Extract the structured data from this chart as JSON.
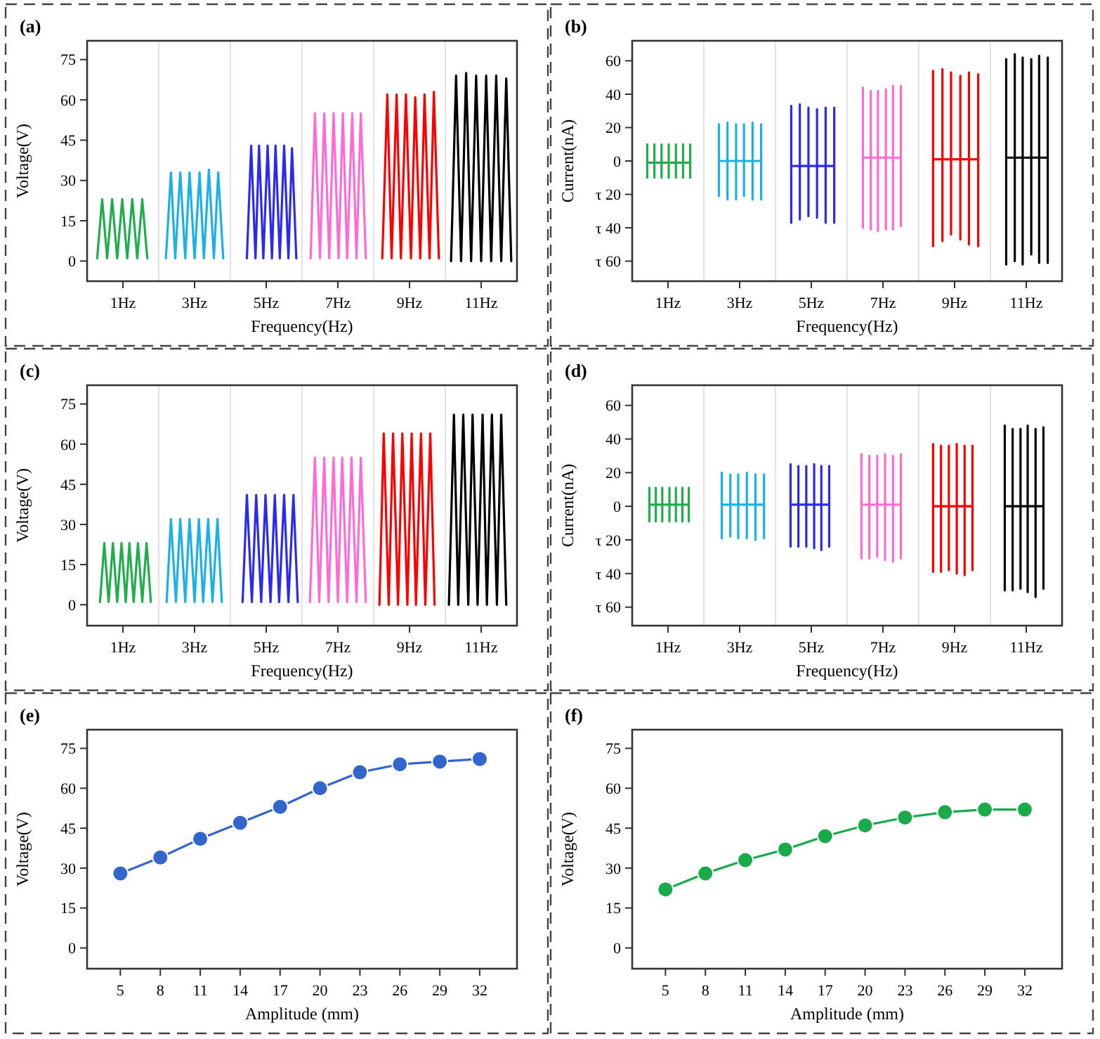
{
  "chart_data": [
    {
      "type": "line",
      "title": "(a)",
      "xlabel": "Frequency(Hz)",
      "ylabel": "Voltage(V)",
      "xlim": [
        0,
        12
      ],
      "ylim": [
        -7.5,
        82
      ],
      "xticks": [
        {
          "value": 1,
          "label": "1Hz"
        },
        {
          "value": 3,
          "label": "3Hz"
        },
        {
          "value": 5,
          "label": "5Hz"
        },
        {
          "value": 7,
          "label": "7Hz"
        },
        {
          "value": 9,
          "label": "9Hz"
        },
        {
          "value": 11,
          "label": "11Hz"
        }
      ],
      "yticks": [
        0,
        15,
        30,
        45,
        60,
        75
      ],
      "ref_lines": [
        {
          "axis": "x",
          "value": 2,
          "color": "#e3e3e3"
        },
        {
          "axis": "x",
          "value": 4,
          "color": "#e3e3e3"
        },
        {
          "axis": "x",
          "value": 6,
          "color": "#e3e3e3"
        },
        {
          "axis": "x",
          "value": 8,
          "color": "#e3e3e3"
        },
        {
          "axis": "x",
          "value": 10,
          "color": "#e3e3e3"
        }
      ],
      "series": [
        {
          "color": "#1fae4b",
          "x": [
            0.28,
            0.42,
            0.56,
            0.7,
            0.84,
            0.98,
            1.12,
            1.26,
            1.4,
            1.54,
            1.68
          ],
          "values": [
            1,
            23,
            1,
            23,
            1,
            23,
            1,
            23,
            1,
            23,
            1
          ]
        },
        {
          "color": "#1ab0e8",
          "x": [
            2.2,
            2.34,
            2.46,
            2.6,
            2.74,
            2.86,
            3,
            3.14,
            3.26,
            3.4,
            3.54,
            3.66,
            3.8
          ],
          "values": [
            1,
            33,
            1,
            33,
            1,
            33,
            1,
            33,
            1,
            34,
            1,
            33,
            1
          ]
        },
        {
          "color": "#2a2af0",
          "x": [
            4.46,
            4.58,
            4.7,
            4.8,
            4.92,
            5.04,
            5.16,
            5.26,
            5.38,
            5.5,
            5.62,
            5.72,
            5.84
          ],
          "values": [
            1,
            43,
            1,
            43,
            1,
            43,
            1,
            43,
            1,
            43,
            1,
            42,
            1
          ]
        },
        {
          "color": "#ff6ad5",
          "x": [
            6.24,
            6.36,
            6.5,
            6.62,
            6.76,
            6.88,
            7.02,
            7.14,
            7.26,
            7.4,
            7.52,
            7.64,
            7.78
          ],
          "values": [
            1,
            55,
            1,
            55,
            1,
            55,
            1,
            55,
            1,
            55,
            1,
            55,
            1
          ]
        },
        {
          "color": "#ff0000",
          "x": [
            8.24,
            8.38,
            8.5,
            8.64,
            8.76,
            8.9,
            9.04,
            9.16,
            9.3,
            9.42,
            9.56,
            9.68,
            9.82
          ],
          "values": [
            1,
            62,
            1,
            62,
            1,
            62,
            1,
            61,
            1,
            62,
            1,
            63,
            1
          ]
        },
        {
          "color": "#000000",
          "x": [
            10.16,
            10.3,
            10.44,
            10.58,
            10.72,
            10.86,
            11,
            11.14,
            11.28,
            11.42,
            11.56,
            11.7,
            11.84
          ],
          "values": [
            0,
            69,
            0,
            70,
            0,
            69,
            0,
            69,
            0,
            69,
            0,
            68,
            0
          ]
        }
      ]
    },
    {
      "type": "line",
      "title": "(b)",
      "xlabel": "Frequency(Hz)",
      "ylabel": "Current(nA)",
      "xlim": [
        0,
        12
      ],
      "ylim": [
        -72,
        72
      ],
      "xticks": [
        {
          "value": 1,
          "label": "1Hz"
        },
        {
          "value": 3,
          "label": "3Hz"
        },
        {
          "value": 5,
          "label": "5Hz"
        },
        {
          "value": 7,
          "label": "7Hz"
        },
        {
          "value": 9,
          "label": "9Hz"
        },
        {
          "value": 11,
          "label": "11Hz"
        }
      ],
      "yticks": [
        {
          "value": 60,
          "label": "60"
        },
        {
          "value": 40,
          "label": "40"
        },
        {
          "value": 20,
          "label": "20"
        },
        {
          "value": 0,
          "label": "0"
        },
        {
          "value": -20,
          "label": "τ 20"
        },
        {
          "value": -40,
          "label": "τ 40"
        },
        {
          "value": -60,
          "label": "τ 60"
        }
      ],
      "ref_lines": [
        {
          "axis": "x",
          "value": 2,
          "color": "#e3e3e3"
        },
        {
          "axis": "x",
          "value": 4,
          "color": "#e3e3e3"
        },
        {
          "axis": "x",
          "value": 6,
          "color": "#e3e3e3"
        },
        {
          "axis": "x",
          "value": 8,
          "color": "#e3e3e3"
        },
        {
          "axis": "x",
          "value": 10,
          "color": "#e3e3e3"
        }
      ],
      "series": [
        {
          "color": "#1fae4b",
          "x": [
            0.42,
            0.42,
            0.42,
            0.42,
            0.62,
            0.62,
            0.62,
            0.62,
            0.82,
            0.82,
            0.82,
            0.82,
            1.02,
            1.02,
            1.02,
            1.02,
            1.22,
            1.22,
            1.22,
            1.22,
            1.42,
            1.42,
            1.42,
            1.42,
            1.62,
            1.62,
            1.62,
            1.62
          ],
          "values": [
            -1,
            10,
            -10,
            -1,
            -1,
            10,
            -10,
            -1,
            -1,
            10,
            -10,
            -1,
            -1,
            10,
            -10,
            -1,
            -1,
            10,
            -10,
            -1,
            -1,
            10,
            -10,
            -1,
            -1,
            10,
            -10,
            -1
          ]
        },
        {
          "color": "#1ab0e8",
          "x": [
            2.42,
            2.42,
            2.42,
            2.42,
            2.66,
            2.66,
            2.66,
            2.66,
            2.9,
            2.9,
            2.9,
            2.9,
            3.12,
            3.12,
            3.12,
            3.12,
            3.36,
            3.36,
            3.36,
            3.36,
            3.6,
            3.6,
            3.6,
            3.6
          ],
          "values": [
            0,
            22,
            -21,
            0,
            0,
            23,
            -23,
            0,
            0,
            22,
            -23,
            0,
            0,
            22,
            -21,
            0,
            0,
            23,
            -23,
            0,
            0,
            22,
            -23,
            0
          ]
        },
        {
          "color": "#2a2af0",
          "x": [
            4.44,
            4.44,
            4.44,
            4.44,
            4.68,
            4.68,
            4.68,
            4.68,
            4.92,
            4.92,
            4.92,
            4.92,
            5.16,
            5.16,
            5.16,
            5.16,
            5.4,
            5.4,
            5.4,
            5.4,
            5.64,
            5.64,
            5.64,
            5.64
          ],
          "values": [
            -3,
            33,
            -37,
            -3,
            -3,
            34,
            -35,
            -3,
            -3,
            32,
            -33,
            -3,
            -3,
            31,
            -34,
            -3,
            -3,
            32,
            -37,
            -3,
            -3,
            32,
            -37,
            -3
          ]
        },
        {
          "color": "#ff6ad5",
          "x": [
            6.44,
            6.44,
            6.44,
            6.44,
            6.66,
            6.66,
            6.66,
            6.66,
            6.86,
            6.86,
            6.86,
            6.86,
            7.08,
            7.08,
            7.08,
            7.08,
            7.28,
            7.28,
            7.28,
            7.28,
            7.5,
            7.5,
            7.5,
            7.5
          ],
          "values": [
            2,
            44,
            -40,
            2,
            2,
            42,
            -41,
            2,
            2,
            42,
            -42,
            2,
            2,
            43,
            -41,
            2,
            2,
            45,
            -41,
            2,
            2,
            45,
            -39,
            2
          ]
        },
        {
          "color": "#ff0000",
          "x": [
            8.4,
            8.4,
            8.4,
            8.4,
            8.66,
            8.66,
            8.66,
            8.66,
            8.9,
            8.9,
            8.9,
            8.9,
            9.16,
            9.16,
            9.16,
            9.16,
            9.4,
            9.4,
            9.4,
            9.4,
            9.66,
            9.66,
            9.66,
            9.66
          ],
          "values": [
            1,
            54,
            -51,
            1,
            1,
            55,
            -48,
            1,
            1,
            53,
            -44,
            1,
            1,
            51,
            -47,
            1,
            1,
            53,
            -50,
            1,
            1,
            52,
            -51,
            1
          ]
        },
        {
          "color": "#000000",
          "x": [
            10.44,
            10.44,
            10.44,
            10.44,
            10.68,
            10.68,
            10.68,
            10.68,
            10.9,
            10.9,
            10.9,
            10.9,
            11.14,
            11.14,
            11.14,
            11.14,
            11.36,
            11.36,
            11.36,
            11.36,
            11.6,
            11.6,
            11.6,
            11.6
          ],
          "values": [
            2,
            61,
            -62,
            2,
            2,
            64,
            -60,
            2,
            2,
            62,
            -62,
            2,
            2,
            61,
            -56,
            2,
            2,
            63,
            -61,
            2,
            2,
            62,
            -61,
            2
          ]
        }
      ]
    },
    {
      "type": "line",
      "title": "(c)",
      "xlabel": "Frequency(Hz)",
      "ylabel": "Voltage(V)",
      "xlim": [
        0,
        12
      ],
      "ylim": [
        -7.8,
        82
      ],
      "xticks": [
        {
          "value": 1,
          "label": "1Hz"
        },
        {
          "value": 3,
          "label": "3Hz"
        },
        {
          "value": 5,
          "label": "5Hz"
        },
        {
          "value": 7,
          "label": "7Hz"
        },
        {
          "value": 9,
          "label": "9Hz"
        },
        {
          "value": 11,
          "label": "11Hz"
        }
      ],
      "yticks": [
        0,
        15,
        30,
        45,
        60,
        75
      ],
      "ref_lines": [
        {
          "axis": "x",
          "value": 2,
          "color": "#e3e3e3"
        },
        {
          "axis": "x",
          "value": 4,
          "color": "#e3e3e3"
        },
        {
          "axis": "x",
          "value": 6,
          "color": "#e3e3e3"
        },
        {
          "axis": "x",
          "value": 8,
          "color": "#e3e3e3"
        },
        {
          "axis": "x",
          "value": 10,
          "color": "#e3e3e3"
        }
      ],
      "series": [
        {
          "color": "#1fae4b",
          "x": [
            0.36,
            0.48,
            0.6,
            0.72,
            0.84,
            0.96,
            1.08,
            1.18,
            1.3,
            1.42,
            1.54,
            1.66,
            1.78
          ],
          "values": [
            1,
            23,
            1,
            23,
            1,
            23,
            1,
            23,
            1,
            23,
            1,
            23,
            1
          ]
        },
        {
          "color": "#1ab0e8",
          "x": [
            2.22,
            2.34,
            2.48,
            2.6,
            2.74,
            2.86,
            3,
            3.12,
            3.24,
            3.38,
            3.5,
            3.64,
            3.76
          ],
          "values": [
            1,
            32,
            1,
            32,
            1,
            32,
            1,
            32,
            1,
            32,
            1,
            32,
            1
          ]
        },
        {
          "color": "#2a2af0",
          "x": [
            4.34,
            4.46,
            4.6,
            4.72,
            4.86,
            4.98,
            5.12,
            5.24,
            5.36,
            5.5,
            5.62,
            5.76,
            5.88
          ],
          "values": [
            1,
            41,
            1,
            41,
            1,
            41,
            1,
            41,
            1,
            41,
            1,
            41,
            1
          ]
        },
        {
          "color": "#ff6ad5",
          "x": [
            6.22,
            6.36,
            6.48,
            6.62,
            6.74,
            6.88,
            7,
            7.12,
            7.26,
            7.38,
            7.52,
            7.64,
            7.78
          ],
          "values": [
            1,
            55,
            1,
            55,
            1,
            55,
            1,
            55,
            1,
            55,
            1,
            55,
            1
          ]
        },
        {
          "color": "#ff0000",
          "x": [
            8.16,
            8.28,
            8.42,
            8.54,
            8.68,
            8.8,
            8.94,
            9.06,
            9.18,
            9.32,
            9.44,
            9.58,
            9.7
          ],
          "values": [
            0,
            64,
            0,
            64,
            0,
            64,
            0,
            64,
            0,
            64,
            0,
            64,
            0
          ]
        },
        {
          "color": "#000000",
          "x": [
            10.1,
            10.24,
            10.36,
            10.5,
            10.64,
            10.76,
            10.9,
            11.04,
            11.16,
            11.3,
            11.44,
            11.56,
            11.7
          ],
          "values": [
            0,
            71,
            0,
            71,
            0,
            71,
            0,
            71,
            0,
            71,
            0,
            71,
            0
          ]
        }
      ]
    },
    {
      "type": "line",
      "title": "(d)",
      "xlabel": "Frequency(Hz)",
      "ylabel": "Current(nA)",
      "xlim": [
        0,
        12
      ],
      "ylim": [
        -71,
        72
      ],
      "xticks": [
        {
          "value": 1,
          "label": "1Hz"
        },
        {
          "value": 3,
          "label": "3Hz"
        },
        {
          "value": 5,
          "label": "5Hz"
        },
        {
          "value": 7,
          "label": "7Hz"
        },
        {
          "value": 9,
          "label": "9Hz"
        },
        {
          "value": 11,
          "label": "11Hz"
        }
      ],
      "yticks": [
        {
          "value": 60,
          "label": "60"
        },
        {
          "value": 40,
          "label": "40"
        },
        {
          "value": 20,
          "label": "20"
        },
        {
          "value": 0,
          "label": "0"
        },
        {
          "value": -20,
          "label": "τ 20"
        },
        {
          "value": -40,
          "label": "τ 40"
        },
        {
          "value": -60,
          "label": "τ 60"
        }
      ],
      "ref_lines": [
        {
          "axis": "x",
          "value": 2,
          "color": "#e3e3e3"
        },
        {
          "axis": "x",
          "value": 4,
          "color": "#e3e3e3"
        },
        {
          "axis": "x",
          "value": 6,
          "color": "#e3e3e3"
        },
        {
          "axis": "x",
          "value": 8,
          "color": "#e3e3e3"
        },
        {
          "axis": "x",
          "value": 10,
          "color": "#e3e3e3"
        }
      ],
      "series": [
        {
          "color": "#1fae4b",
          "x": [
            0.48,
            0.48,
            0.48,
            0.48,
            0.66,
            0.66,
            0.66,
            0.66,
            0.84,
            0.84,
            0.84,
            0.84,
            1.04,
            1.04,
            1.04,
            1.04,
            1.22,
            1.22,
            1.22,
            1.22,
            1.4,
            1.4,
            1.4,
            1.4,
            1.58,
            1.58,
            1.58,
            1.58
          ],
          "values": [
            1,
            11,
            -9,
            1,
            1,
            11,
            -9,
            1,
            1,
            11,
            -9,
            1,
            1,
            11,
            -9,
            1,
            1,
            11,
            -9,
            1,
            1,
            11,
            -9,
            1,
            1,
            11,
            -9,
            1
          ]
        },
        {
          "color": "#1ab0e8",
          "x": [
            2.5,
            2.5,
            2.5,
            2.5,
            2.74,
            2.74,
            2.74,
            2.74,
            2.96,
            2.96,
            2.96,
            2.96,
            3.2,
            3.2,
            3.2,
            3.2,
            3.44,
            3.44,
            3.44,
            3.44,
            3.68,
            3.68,
            3.68,
            3.68
          ],
          "values": [
            1,
            20,
            -19,
            1,
            1,
            19,
            -18,
            1,
            1,
            19,
            -19,
            1,
            1,
            20,
            -19,
            1,
            1,
            19,
            -20,
            1,
            1,
            19,
            -19,
            1
          ]
        },
        {
          "color": "#2a2af0",
          "x": [
            4.42,
            4.42,
            4.42,
            4.42,
            4.64,
            4.64,
            4.64,
            4.64,
            4.86,
            4.86,
            4.86,
            4.86,
            5.08,
            5.08,
            5.08,
            5.08,
            5.28,
            5.28,
            5.28,
            5.28,
            5.5,
            5.5,
            5.5,
            5.5
          ],
          "values": [
            1,
            25,
            -24,
            1,
            1,
            24,
            -24,
            1,
            1,
            24,
            -24,
            1,
            1,
            25,
            -25,
            1,
            1,
            24,
            -26,
            1,
            1,
            24,
            -24,
            1
          ]
        },
        {
          "color": "#ff6ad5",
          "x": [
            6.4,
            6.4,
            6.4,
            6.4,
            6.62,
            6.62,
            6.62,
            6.62,
            6.84,
            6.84,
            6.84,
            6.84,
            7.06,
            7.06,
            7.06,
            7.06,
            7.28,
            7.28,
            7.28,
            7.28,
            7.5,
            7.5,
            7.5,
            7.5
          ],
          "values": [
            1,
            31,
            -31,
            1,
            1,
            30,
            -31,
            1,
            1,
            30,
            -30,
            1,
            1,
            31,
            -32,
            1,
            1,
            30,
            -33,
            1,
            1,
            31,
            -31,
            1
          ]
        },
        {
          "color": "#ff0000",
          "x": [
            8.4,
            8.4,
            8.4,
            8.4,
            8.62,
            8.62,
            8.62,
            8.62,
            8.84,
            8.84,
            8.84,
            8.84,
            9.06,
            9.06,
            9.06,
            9.06,
            9.28,
            9.28,
            9.28,
            9.28,
            9.5,
            9.5,
            9.5,
            9.5
          ],
          "values": [
            0,
            37,
            -39,
            0,
            0,
            36,
            -39,
            0,
            0,
            36,
            -38,
            0,
            0,
            37,
            -40,
            0,
            0,
            36,
            -41,
            0,
            0,
            36,
            -38,
            0
          ]
        },
        {
          "color": "#000000",
          "x": [
            10.4,
            10.4,
            10.4,
            10.4,
            10.62,
            10.62,
            10.62,
            10.62,
            10.84,
            10.84,
            10.84,
            10.84,
            11.04,
            11.04,
            11.04,
            11.04,
            11.26,
            11.26,
            11.26,
            11.26,
            11.48,
            11.48,
            11.48,
            11.48
          ],
          "values": [
            0,
            48,
            -50,
            0,
            0,
            46,
            -50,
            0,
            0,
            46,
            -49,
            0,
            0,
            48,
            -51,
            0,
            0,
            46,
            -54,
            0,
            0,
            47,
            -49,
            0
          ]
        }
      ]
    },
    {
      "type": "line",
      "title": "(e)",
      "xlabel": "Amplitude (mm)",
      "ylabel": "Voltage(V)",
      "xlim": [
        2.5,
        34.8
      ],
      "ylim": [
        -7.8,
        82
      ],
      "xticks": [
        5,
        8,
        11,
        14,
        17,
        20,
        23,
        26,
        29,
        32
      ],
      "yticks": [
        0,
        15,
        30,
        45,
        60,
        75
      ],
      "marker": "circle",
      "x": [
        5,
        8,
        11,
        14,
        17,
        20,
        23,
        26,
        29,
        32
      ],
      "series": [
        {
          "color": "#3366cc",
          "values": [
            28,
            34,
            41,
            47,
            53,
            60,
            66,
            69,
            70,
            71
          ]
        }
      ]
    },
    {
      "type": "line",
      "title": "(f)",
      "xlabel": "Amplitude (mm)",
      "ylabel": "Voltage(V)",
      "xlim": [
        2.5,
        34.8
      ],
      "ylim": [
        -7.8,
        82
      ],
      "xticks": [
        5,
        8,
        11,
        14,
        17,
        20,
        23,
        26,
        29,
        32
      ],
      "yticks": [
        0,
        15,
        30,
        45,
        60,
        75
      ],
      "marker": "circle",
      "x": [
        5,
        8,
        11,
        14,
        17,
        20,
        23,
        26,
        29,
        32
      ],
      "series": [
        {
          "color": "#1aaa4a",
          "values": [
            22,
            28,
            33,
            37,
            42,
            46,
            49,
            51,
            52,
            52
          ]
        }
      ]
    }
  ]
}
